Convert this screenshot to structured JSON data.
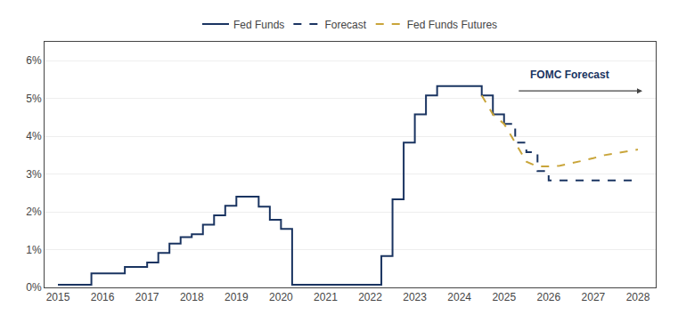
{
  "chart_data": {
    "type": "line",
    "series": [
      {
        "name": "Fed Funds",
        "type": "step",
        "line_style": "solid",
        "color": "#1a3461",
        "x": [
          2015,
          2015.25,
          2015.75,
          2016,
          2016.25,
          2016.5,
          2017,
          2017.25,
          2017.5,
          2017.75,
          2018,
          2018.25,
          2018.5,
          2018.75,
          2019,
          2019.25,
          2019.5,
          2019.75,
          2020,
          2020.25,
          2020.5,
          2020.75,
          2021,
          2021.25,
          2021.5,
          2021.75,
          2022,
          2022.25,
          2022.5,
          2022.75,
          2023,
          2023.25,
          2023.5,
          2023.75,
          2024,
          2024.25,
          2024.5,
          2024.75,
          2025
        ],
        "values": [
          0.07,
          0.07,
          0.37,
          0.37,
          0.37,
          0.54,
          0.66,
          0.91,
          1.16,
          1.33,
          1.41,
          1.66,
          1.91,
          2.16,
          2.4,
          2.4,
          2.14,
          1.79,
          1.55,
          0.07,
          0.07,
          0.07,
          0.07,
          0.07,
          0.07,
          0.07,
          0.07,
          0.83,
          2.33,
          3.83,
          4.58,
          5.08,
          5.33,
          5.33,
          5.33,
          5.33,
          5.08,
          4.58,
          4.33
        ]
      },
      {
        "name": "Forecast",
        "type": "step",
        "line_style": "dashed",
        "color": "#1a3461",
        "x": [
          2025,
          2025.25,
          2025.5,
          2025.75,
          2026,
          2026.25,
          2026.5,
          2026.75,
          2027,
          2027.25,
          2027.5,
          2027.75,
          2028
        ],
        "values": [
          4.33,
          3.83,
          3.58,
          3.08,
          2.83,
          2.83,
          2.83,
          2.83,
          2.83,
          2.83,
          2.83,
          2.83,
          2.83
        ]
      },
      {
        "name": "Fed Funds Futures",
        "type": "line",
        "line_style": "dashed",
        "color": "#c9a53a",
        "x": [
          2024.5,
          2024.75,
          2025,
          2025.25,
          2025.5,
          2025.75,
          2026,
          2026.25,
          2026.5,
          2026.75,
          2027,
          2027.25,
          2027.5,
          2027.75,
          2028
        ],
        "values": [
          5.08,
          4.58,
          4.33,
          3.83,
          3.33,
          3.2,
          3.2,
          3.22,
          3.28,
          3.35,
          3.42,
          3.5,
          3.55,
          3.6,
          3.65
        ]
      }
    ],
    "annotations": [
      {
        "text": "FOMC Forecast",
        "x": 2025.55,
        "y": 5.42,
        "color": "#1a3461",
        "arrow_from": 2025.3,
        "arrow_to": 2028.1,
        "arrow_y": 5.2
      }
    ],
    "xlim": [
      2014.7,
      2028.4
    ],
    "xticks": [
      2015,
      2016,
      2017,
      2018,
      2019,
      2020,
      2021,
      2022,
      2023,
      2024,
      2025,
      2026,
      2027,
      2028
    ],
    "ylim": [
      0,
      6.5
    ],
    "yticks": [
      {
        "value": 0,
        "label": "0%"
      },
      {
        "value": 1,
        "label": "1%"
      },
      {
        "value": 2,
        "label": "2%"
      },
      {
        "value": 3,
        "label": "3%"
      },
      {
        "value": 4,
        "label": "4%"
      },
      {
        "value": 5,
        "label": "5%"
      },
      {
        "value": 6,
        "label": "6%"
      }
    ],
    "grid": "y",
    "legend": "top"
  }
}
